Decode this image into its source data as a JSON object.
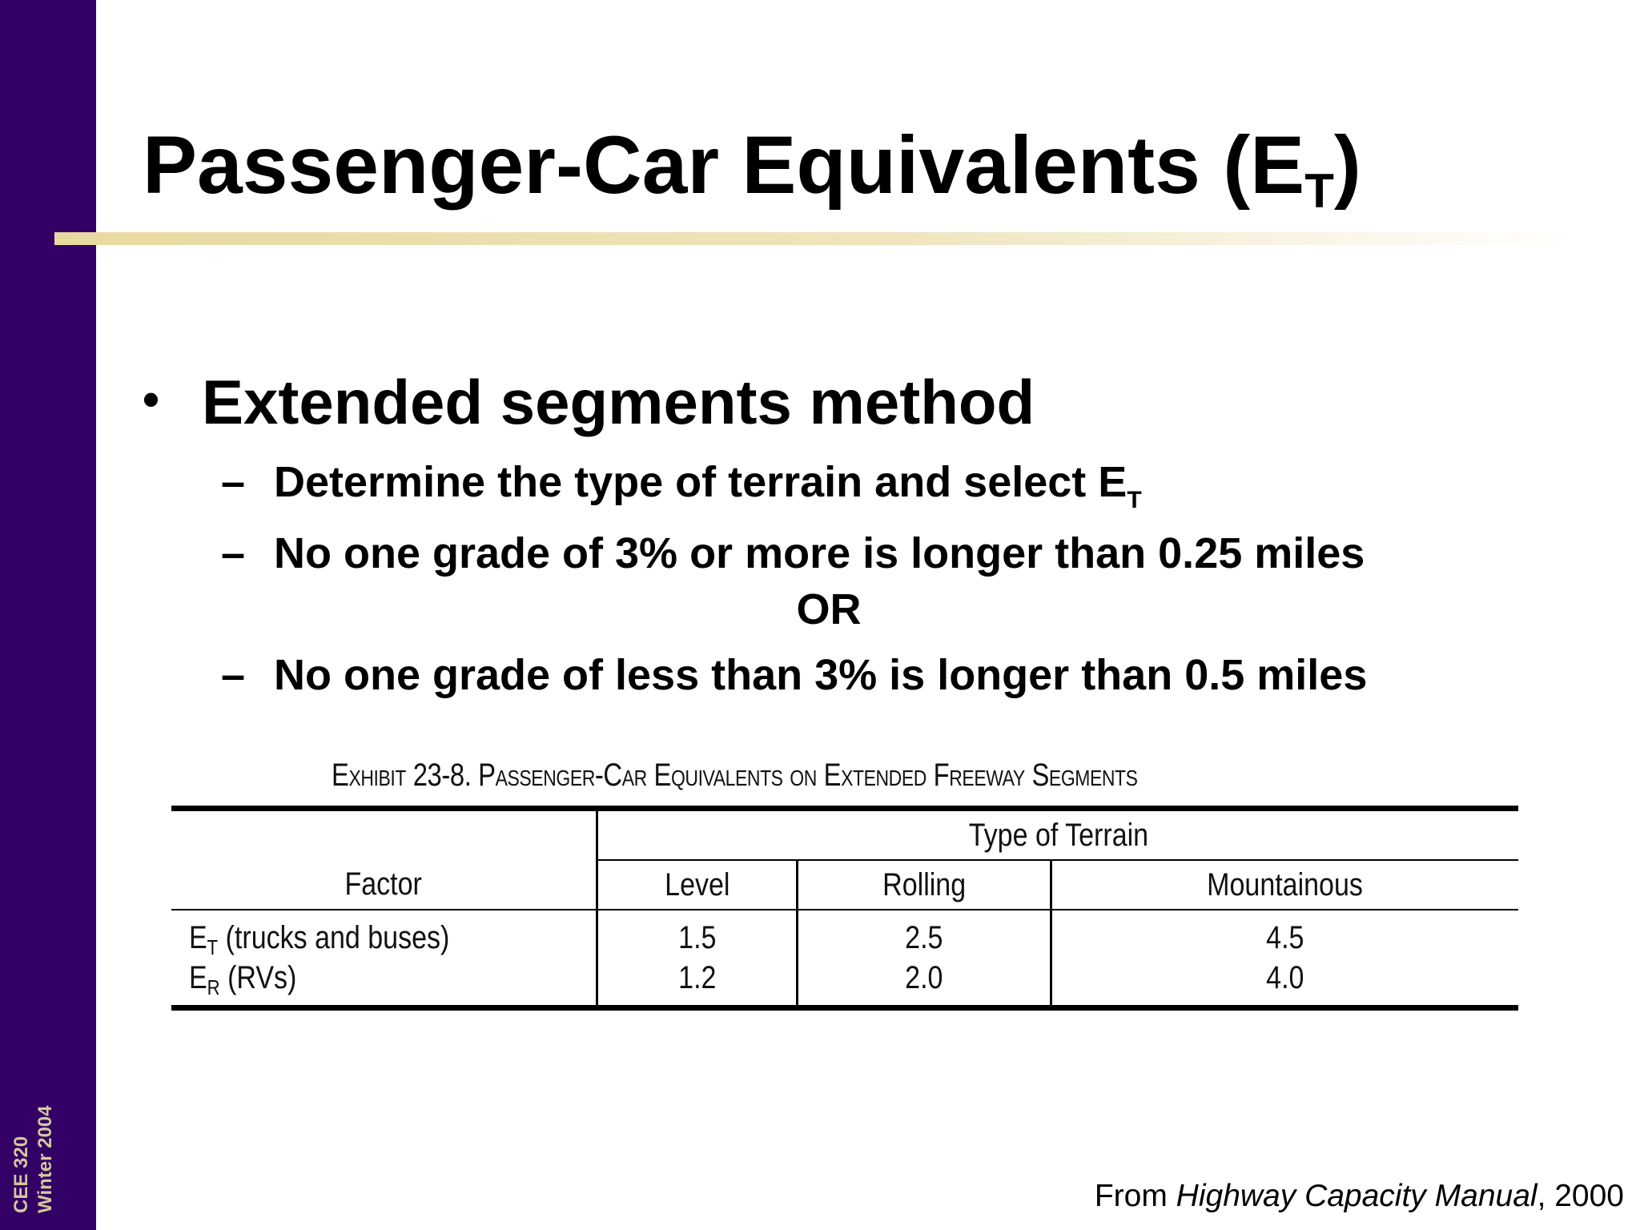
{
  "sidebar": {
    "course": "CEE 320",
    "term": "Winter 2004",
    "background_color": "#330066",
    "text_color": "#d4c89a"
  },
  "title": {
    "main": "Passenger-Car Equivalents (E",
    "subscript": "T",
    "close": ")"
  },
  "bullets": {
    "main": "Extended segments method",
    "sub1_text": "Determine the type of terrain and select E",
    "sub1_subscript": "T",
    "sub2_text": "No one grade of 3% or more is longer than 0.25 miles",
    "or_text": "OR",
    "sub3_text": "No one grade of less than 3% is longer than 0.5 miles",
    "dash": "–"
  },
  "exhibit": {
    "caption_prefix": "Exhibit 23-8.",
    "caption_title": "Passenger-Car Equivalents on Extended Freeway Segments",
    "header_group": "Type of Terrain",
    "factor_header": "Factor",
    "columns": [
      "Level",
      "Rolling",
      "Mountainous"
    ],
    "rows": [
      {
        "factor_base": "E",
        "factor_sub": "T",
        "factor_text": " (trucks and buses)",
        "values": [
          "1.5",
          "2.5",
          "4.5"
        ]
      },
      {
        "factor_base": "E",
        "factor_sub": "R",
        "factor_text": " (RVs)",
        "values": [
          "1.2",
          "2.0",
          "4.0"
        ]
      }
    ]
  },
  "source": {
    "prefix": "From ",
    "italic": "Highway Capacity Manual",
    "suffix": ", 2000"
  }
}
